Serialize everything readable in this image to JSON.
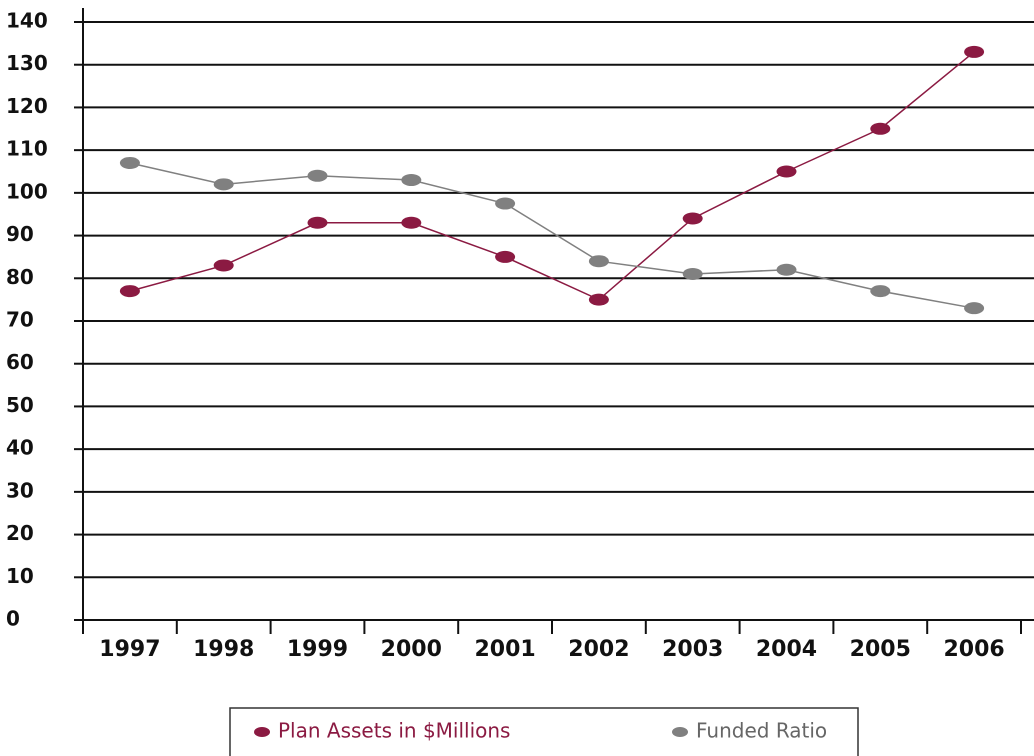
{
  "chart_data": {
    "type": "line",
    "categories": [
      "1997",
      "1998",
      "1999",
      "2000",
      "2001",
      "2002",
      "2003",
      "2004",
      "2005",
      "2006"
    ],
    "series": [
      {
        "name": "Plan Assets in $Millions",
        "color": "#8b1a42",
        "values": [
          77,
          83,
          93,
          93,
          85,
          75,
          94,
          105,
          115,
          133
        ]
      },
      {
        "name": "Funded Ratio",
        "color": "#808080",
        "values": [
          107,
          102,
          104,
          103,
          97.5,
          84,
          81,
          82,
          77,
          73
        ]
      }
    ],
    "ylim": [
      0,
      140
    ],
    "yticks": [
      0,
      10,
      20,
      30,
      40,
      50,
      60,
      70,
      80,
      90,
      100,
      110,
      120,
      130,
      140
    ],
    "grid": true,
    "legend": "bottom"
  }
}
